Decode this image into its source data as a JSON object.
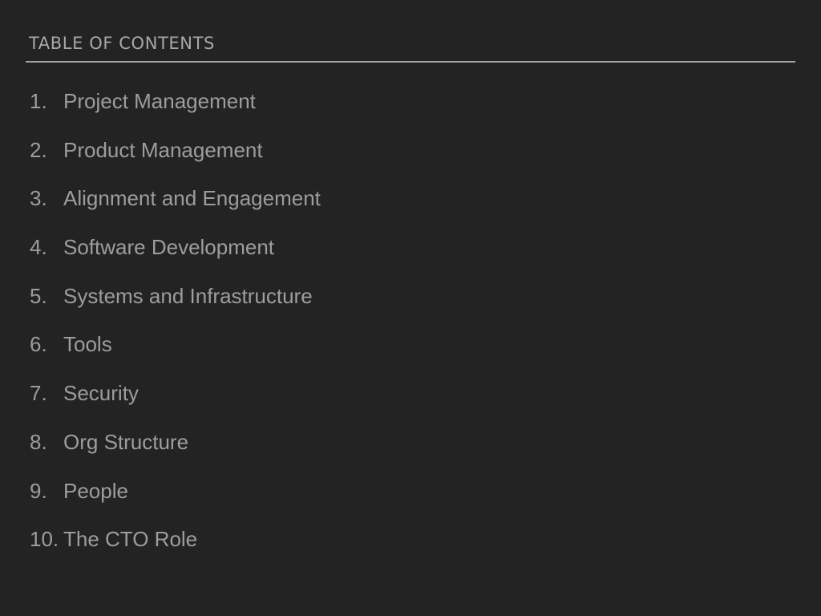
{
  "toc": {
    "heading": "TABLE OF CONTENTS",
    "items": [
      {
        "number": "1.",
        "label": "Project Management"
      },
      {
        "number": "2.",
        "label": "Product Management"
      },
      {
        "number": "3.",
        "label": "Alignment and Engagement"
      },
      {
        "number": "4.",
        "label": "Software Development"
      },
      {
        "number": "5.",
        "label": "Systems and Infrastructure"
      },
      {
        "number": "6.",
        "label": "Tools"
      },
      {
        "number": "7.",
        "label": "Security"
      },
      {
        "number": "8.",
        "label": "Org Structure"
      },
      {
        "number": "9.",
        "label": "People"
      },
      {
        "number": "10.",
        "label": "The CTO Role"
      }
    ]
  },
  "colors": {
    "background": "#232323",
    "text": "#9d9d9d",
    "rule": "#a3a3a3"
  }
}
